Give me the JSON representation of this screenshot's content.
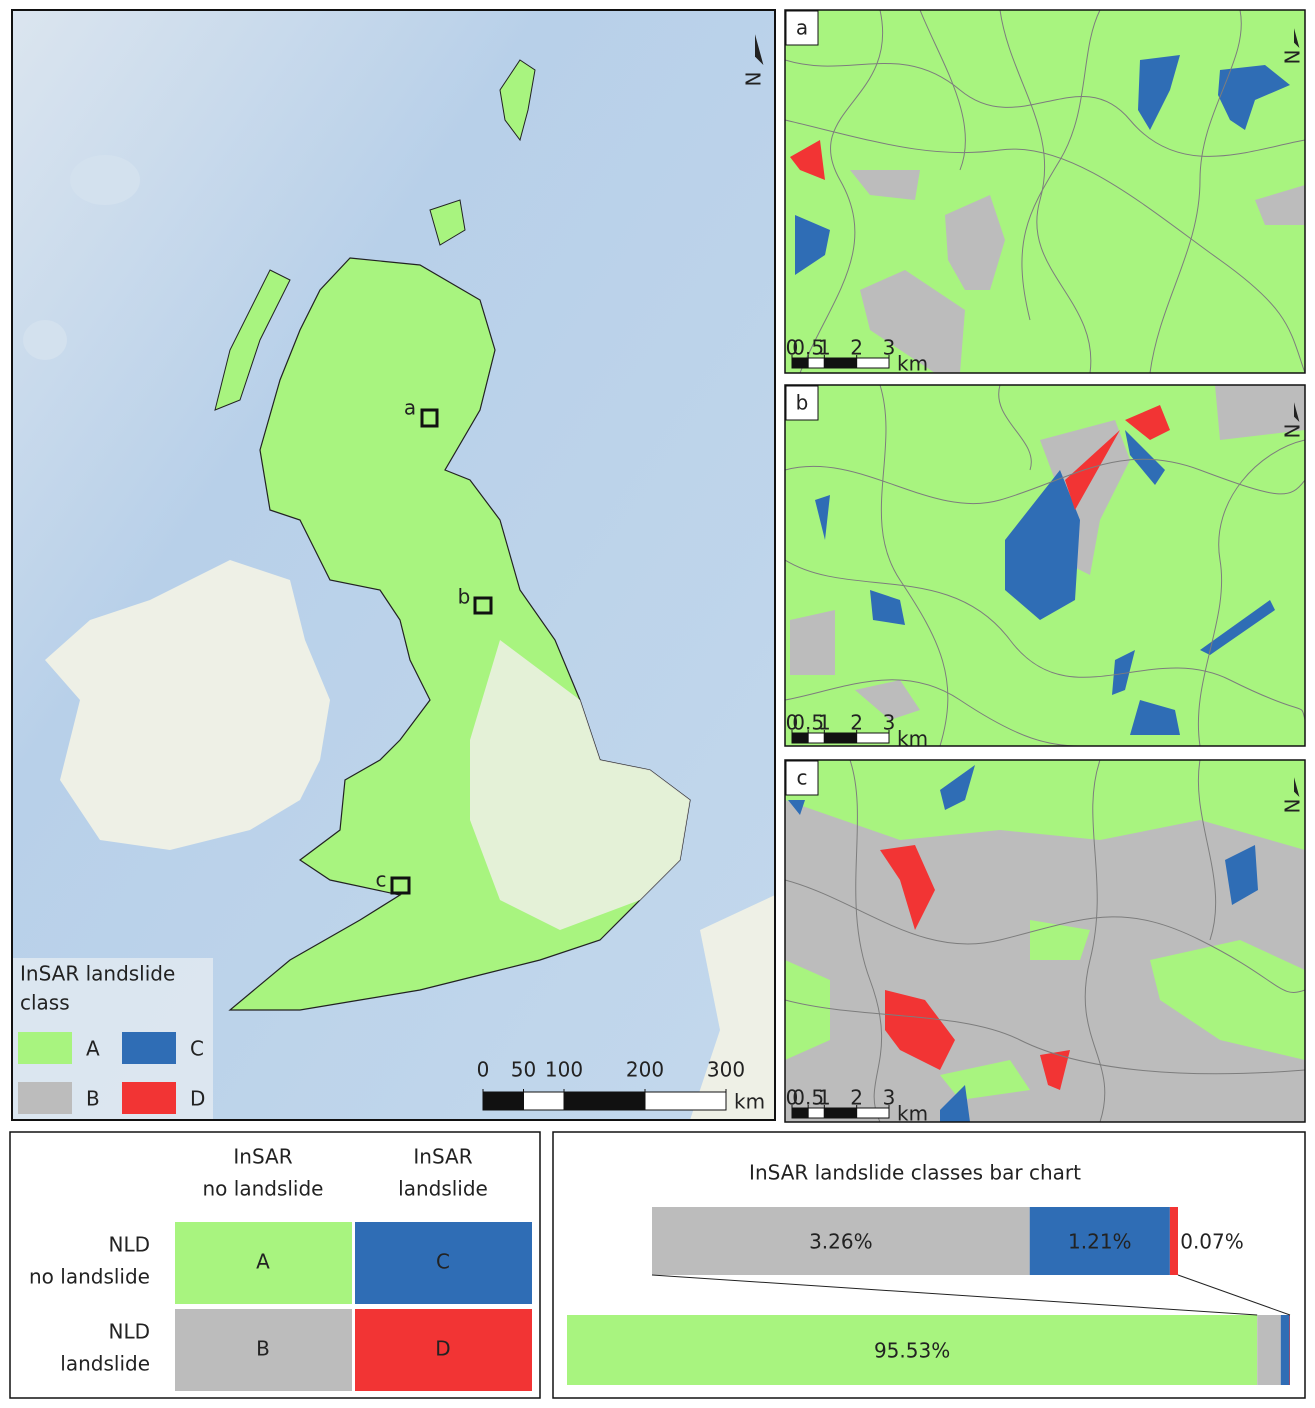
{
  "map": {
    "north": "N",
    "legend": {
      "title_lines": [
        "InSAR landslide",
        "class"
      ],
      "classes": [
        {
          "label": "A",
          "color": "#a8f47f"
        },
        {
          "label": "B",
          "color": "#bcbcbc"
        },
        {
          "label": "C",
          "color": "#2f6db5"
        },
        {
          "label": "D",
          "color": "#f23434"
        }
      ]
    },
    "site_labels": [
      "a",
      "b",
      "c"
    ],
    "scale_bar": {
      "ticks": [
        0,
        50,
        100,
        200,
        300
      ],
      "unit": "km"
    }
  },
  "insets": [
    {
      "label": "a",
      "scale_bar": {
        "ticks": [
          0,
          0.5,
          1,
          2,
          3
        ],
        "unit": "km"
      }
    },
    {
      "label": "b",
      "scale_bar": {
        "ticks": [
          0,
          0.5,
          1,
          2,
          3
        ],
        "unit": "km"
      }
    },
    {
      "label": "c",
      "scale_bar": {
        "ticks": [
          0,
          0.5,
          1,
          2,
          3
        ],
        "unit": "km"
      }
    }
  ],
  "matrix": {
    "col_headers": [
      [
        "InSAR",
        "no landslide"
      ],
      [
        "InSAR",
        "landslide"
      ]
    ],
    "row_headers": [
      [
        "NLD",
        "no landslide"
      ],
      [
        "NLD",
        "landslide"
      ]
    ],
    "cells": [
      [
        "A",
        "C"
      ],
      [
        "B",
        "D"
      ]
    ]
  },
  "chart_data": {
    "type": "bar",
    "title": "InSAR landslide classes bar chart",
    "values": [
      95.53,
      3.26,
      1.21,
      0.07
    ],
    "value_labels": [
      "95.53%",
      "3.26%",
      "1.21%",
      "0.07%"
    ],
    "colors": [
      "#a8f47f",
      "#bcbcbc",
      "#2f6db5",
      "#f23434"
    ]
  }
}
